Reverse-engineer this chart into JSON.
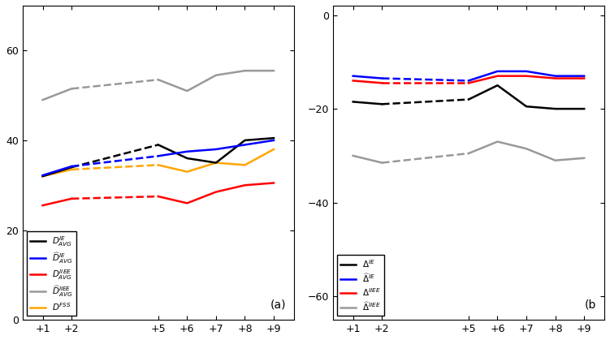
{
  "x_labels": [
    "+1",
    "+2",
    "+5",
    "+6",
    "+7",
    "+8",
    "+9"
  ],
  "x_vals": [
    1,
    2,
    5,
    6,
    7,
    8,
    9
  ],
  "panel_a": {
    "D_IE": [
      32.0,
      34.0,
      39.0,
      36.0,
      35.0,
      40.0,
      40.5
    ],
    "D_IE_hat": [
      32.2,
      34.2,
      36.5,
      37.5,
      38.0,
      39.0,
      40.0
    ],
    "D_IIEE": [
      25.5,
      27.0,
      27.5,
      26.0,
      28.5,
      30.0,
      30.5
    ],
    "D_IIEE_hat": [
      49.0,
      51.5,
      53.5,
      51.0,
      54.5,
      55.5,
      55.5
    ],
    "D_FSS": [
      32.0,
      33.5,
      34.5,
      33.0,
      35.0,
      34.5,
      38.0
    ]
  },
  "panel_b": {
    "Delta_IE": [
      -18.5,
      -19.0,
      -18.0,
      -15.0,
      -19.5,
      -20.0,
      -20.0
    ],
    "Delta_IE_hat": [
      -13.0,
      -13.5,
      -14.0,
      -12.0,
      -12.0,
      -13.0,
      -13.0
    ],
    "Delta_IIEE": [
      -14.0,
      -14.5,
      -14.5,
      -13.0,
      -13.0,
      -13.5,
      -13.5
    ],
    "Delta_IIEE_hat": [
      -30.0,
      -31.5,
      -29.5,
      -27.0,
      -28.5,
      -31.0,
      -30.5
    ]
  },
  "colors": {
    "black": "#000000",
    "blue": "#0000ff",
    "red": "#ff0000",
    "gray": "#999999",
    "orange": "#ffa500"
  },
  "panel_a_ylim": [
    0,
    70
  ],
  "panel_b_ylim": [
    -65,
    2
  ],
  "panel_a_yticks": [
    0,
    20,
    40,
    60
  ],
  "panel_b_yticks": [
    -60,
    -40,
    -20,
    0
  ],
  "lw": 1.8
}
